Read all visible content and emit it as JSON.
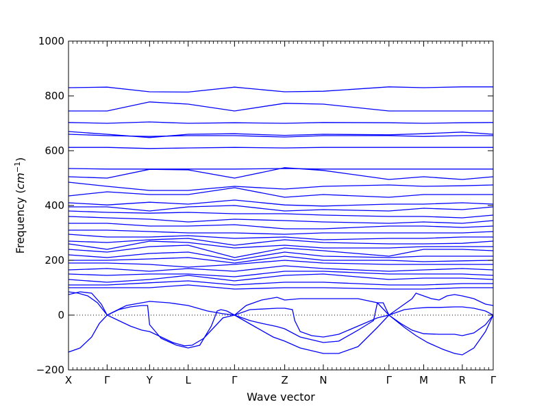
{
  "chart_data": {
    "type": "line",
    "title": "",
    "xlabel": "Wave vector",
    "ylabel": "Frequency",
    "ylabel_unit_base": "cm",
    "ylabel_unit_exp": "−1",
    "ylim": [
      -200,
      1000
    ],
    "yticks": [
      -200,
      0,
      200,
      400,
      600,
      800,
      1000
    ],
    "grid": false,
    "legend": "none",
    "zero_line": true,
    "line_color": "#0000ff",
    "xlim": [
      0,
      11
    ],
    "path_points": [
      {
        "label": "X",
        "x": 0
      },
      {
        "label": "Γ",
        "x": 1
      },
      {
        "label": "Y",
        "x": 2.1
      },
      {
        "label": "L",
        "x": 3.1
      },
      {
        "label": "Γ",
        "x": 4.3
      },
      {
        "label": "Z",
        "x": 5.6
      },
      {
        "label": "N",
        "x": 6.6
      },
      {
        "label": "Γ",
        "x": 8.3
      },
      {
        "label": "M",
        "x": 9.2
      },
      {
        "label": "R",
        "x": 10.2
      },
      {
        "label": "Γ",
        "x": 11
      }
    ],
    "flat_bands": [
      [
        830,
        832,
        815,
        814,
        832,
        815,
        817,
        833,
        830,
        833,
        833
      ],
      [
        745,
        745,
        778,
        770,
        745,
        773,
        770,
        745,
        745,
        745,
        745
      ],
      [
        703,
        700,
        705,
        700,
        702,
        700,
        703,
        702,
        700,
        702,
        703
      ],
      [
        670,
        660,
        648,
        660,
        662,
        656,
        660,
        658,
        662,
        668,
        660
      ],
      [
        660,
        655,
        652,
        655,
        655,
        650,
        655,
        655,
        652,
        655,
        655
      ],
      [
        612,
        612,
        608,
        610,
        612,
        610,
        612,
        612,
        612,
        612,
        612
      ],
      [
        535,
        533,
        533,
        533,
        533,
        535,
        533,
        533,
        533,
        533,
        533
      ],
      [
        505,
        500,
        532,
        530,
        500,
        538,
        528,
        495,
        505,
        495,
        505
      ],
      [
        485,
        470,
        455,
        455,
        470,
        460,
        470,
        475,
        470,
        472,
        475
      ],
      [
        435,
        450,
        440,
        440,
        465,
        430,
        440,
        430,
        440,
        440,
        440
      ],
      [
        410,
        402,
        412,
        405,
        420,
        402,
        398,
        405,
        405,
        410,
        405
      ],
      [
        395,
        395,
        380,
        395,
        400,
        380,
        385,
        380,
        390,
        385,
        395
      ],
      [
        380,
        375,
        372,
        375,
        370,
        370,
        365,
        360,
        360,
        355,
        365
      ],
      [
        360,
        355,
        350,
        340,
        350,
        345,
        340,
        335,
        340,
        335,
        345
      ],
      [
        335,
        335,
        325,
        325,
        330,
        315,
        315,
        325,
        325,
        320,
        325
      ],
      [
        310,
        310,
        305,
        300,
        300,
        295,
        300,
        300,
        300,
        300,
        305
      ],
      [
        295,
        285,
        285,
        290,
        280,
        285,
        275,
        280,
        280,
        285,
        285
      ],
      [
        270,
        265,
        275,
        280,
        255,
        275,
        265,
        260,
        260,
        262,
        270
      ],
      [
        260,
        240,
        270,
        265,
        245,
        255,
        245,
        245,
        250,
        250,
        250
      ],
      [
        240,
        230,
        250,
        255,
        210,
        245,
        235,
        215,
        240,
        240,
        235
      ],
      [
        220,
        210,
        225,
        230,
        200,
        230,
        215,
        210,
        215,
        215,
        215
      ],
      [
        200,
        200,
        205,
        210,
        190,
        215,
        200,
        200,
        195,
        198,
        200
      ],
      [
        190,
        190,
        185,
        175,
        185,
        200,
        190,
        185,
        185,
        185,
        185
      ],
      [
        165,
        170,
        160,
        170,
        160,
        180,
        170,
        160,
        165,
        170,
        165
      ],
      [
        150,
        145,
        150,
        150,
        140,
        160,
        160,
        150,
        150,
        150,
        145
      ],
      [
        130,
        120,
        130,
        145,
        125,
        145,
        150,
        130,
        135,
        135,
        130
      ],
      [
        110,
        110,
        118,
        125,
        110,
        120,
        120,
        110,
        110,
        115,
        115
      ],
      [
        100,
        100,
        100,
        110,
        95,
        100,
        100,
        95,
        95,
        100,
        100
      ]
    ],
    "low_bands": [
      {
        "x": [
          0,
          0.25,
          0.5,
          0.75,
          1,
          1.3,
          1.6,
          1.9,
          2.1,
          2.4,
          2.7,
          3.0,
          3.2,
          3.5,
          3.8,
          4.0,
          4.3
        ],
        "y": [
          85,
          80,
          70,
          45,
          0,
          -20,
          -40,
          -55,
          -60,
          -80,
          -100,
          -112,
          -110,
          -85,
          -40,
          -10,
          0
        ]
      },
      {
        "x": [
          0,
          0.3,
          0.6,
          0.8,
          1,
          1.3,
          1.6,
          1.9,
          2.05,
          2.1,
          2.4,
          2.8,
          3.1,
          3.4,
          3.7,
          3.85,
          3.95,
          4.1,
          4.3
        ],
        "y": [
          -135,
          -120,
          -80,
          -30,
          0,
          20,
          30,
          35,
          35,
          -35,
          -85,
          -110,
          -120,
          -110,
          -40,
          15,
          20,
          15,
          0
        ]
      },
      {
        "x": [
          0,
          0.3,
          0.6,
          0.85,
          1,
          1.5,
          2.1,
          2.6,
          3.1,
          3.6,
          4.0,
          4.3
        ],
        "y": [
          75,
          85,
          80,
          40,
          0,
          35,
          50,
          45,
          35,
          15,
          5,
          0
        ]
      },
      {
        "x": [
          4.3,
          4.7,
          5.0,
          5.4,
          5.6,
          5.8,
          5.86,
          6.0,
          6.3,
          6.6,
          7.0,
          7.5,
          8.0,
          8.3
        ],
        "y": [
          0,
          20,
          22,
          25,
          25,
          20,
          -20,
          -60,
          -75,
          -80,
          -70,
          -40,
          -10,
          0
        ]
      },
      {
        "x": [
          4.3,
          4.7,
          5.0,
          5.4,
          5.6,
          6.0,
          6.6,
          7.0,
          7.5,
          7.9,
          8.0,
          8.15,
          8.3
        ],
        "y": [
          0,
          -20,
          -30,
          -42,
          -50,
          -80,
          -100,
          -95,
          -55,
          -20,
          45,
          45,
          0
        ]
      },
      {
        "x": [
          4.3,
          4.8,
          5.3,
          5.6,
          6.0,
          6.6,
          7.0,
          7.5,
          8.0,
          8.3
        ],
        "y": [
          0,
          -40,
          -80,
          -95,
          -120,
          -140,
          -140,
          -115,
          -45,
          0
        ]
      },
      {
        "x": [
          4.3,
          4.6,
          5.0,
          5.4,
          5.6,
          6.0,
          6.6,
          7.0,
          7.5,
          8.0,
          8.3
        ],
        "y": [
          0,
          35,
          55,
          65,
          55,
          60,
          60,
          60,
          60,
          45,
          0
        ]
      },
      {
        "x": [
          8.3,
          8.6,
          8.9,
          9.2,
          9.6,
          10.0,
          10.2,
          10.5,
          10.8,
          11
        ],
        "y": [
          0,
          -30,
          -55,
          -68,
          -70,
          -70,
          -75,
          -65,
          -35,
          0
        ]
      },
      {
        "x": [
          8.3,
          8.7,
          9.0,
          9.3,
          9.7,
          10.0,
          10.2,
          10.5,
          10.8,
          11
        ],
        "y": [
          0,
          -45,
          -75,
          -100,
          -125,
          -140,
          -145,
          -120,
          -60,
          0
        ]
      },
      {
        "x": [
          8.3,
          8.7,
          9.0,
          9.3,
          9.6,
          10.0,
          10.2,
          10.5,
          10.8,
          11
        ],
        "y": [
          0,
          20,
          25,
          28,
          28,
          30,
          30,
          25,
          15,
          0
        ]
      },
      {
        "x": [
          8.3,
          8.6,
          8.9,
          9.0,
          9.2,
          9.4,
          9.6,
          9.8,
          10.0,
          10.2,
          10.5,
          10.8,
          11
        ],
        "y": [
          0,
          30,
          60,
          80,
          70,
          60,
          55,
          70,
          75,
          70,
          60,
          40,
          35
        ]
      }
    ]
  }
}
